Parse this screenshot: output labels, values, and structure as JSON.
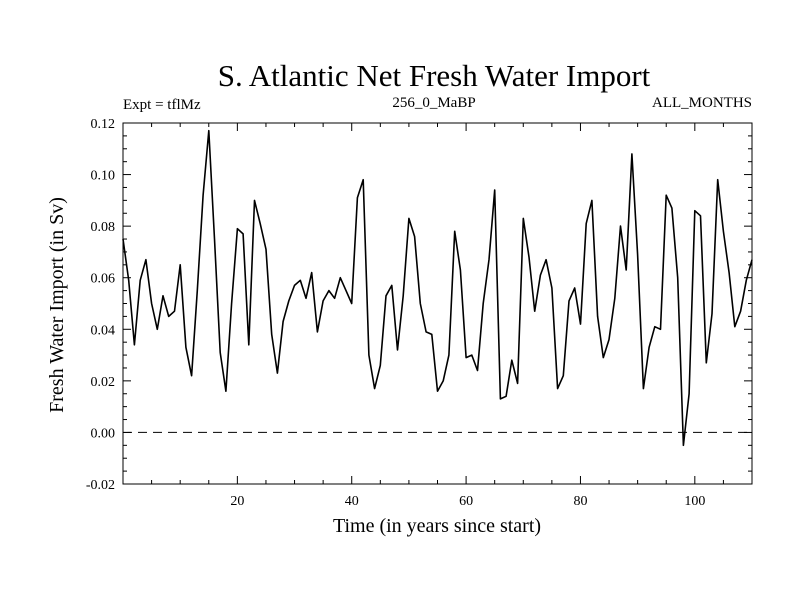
{
  "chart_data": {
    "type": "line",
    "title": "S. Atlantic Net Fresh Water Import",
    "subtitle_left": "Expt = tflMz",
    "subtitle_center": "256_0_MaBP",
    "subtitle_right": "ALL_MONTHS",
    "xlabel": "Time (in years since start)",
    "ylabel": "Fresh Water Import (in Sv)",
    "xlim": [
      0,
      110
    ],
    "ylim": [
      -0.02,
      0.12
    ],
    "x_ticks": [
      20,
      40,
      60,
      80,
      100
    ],
    "x_tick_labels": [
      "20",
      "40",
      "60",
      "80",
      "100"
    ],
    "y_ticks": [
      -0.02,
      0.0,
      0.02,
      0.04,
      0.06,
      0.08,
      0.1,
      0.12
    ],
    "y_tick_labels": [
      "-0.02",
      "0.00",
      "0.02",
      "0.04",
      "0.06",
      "0.08",
      "0.10",
      "0.12"
    ],
    "reference_line": {
      "y": 0.0,
      "style": "dashed"
    },
    "series": [
      {
        "name": "Fresh Water Import",
        "x": [
          0,
          1,
          2,
          3,
          4,
          5,
          6,
          7,
          8,
          9,
          10,
          11,
          12,
          13,
          14,
          15,
          16,
          17,
          18,
          19,
          20,
          21,
          22,
          23,
          24,
          25,
          26,
          27,
          28,
          29,
          30,
          31,
          32,
          33,
          34,
          35,
          36,
          37,
          38,
          39,
          40,
          41,
          42,
          43,
          44,
          45,
          46,
          47,
          48,
          49,
          50,
          51,
          52,
          53,
          54,
          55,
          56,
          57,
          58,
          59,
          60,
          61,
          62,
          63,
          64,
          65,
          66,
          67,
          68,
          69,
          70,
          71,
          72,
          73,
          74,
          75,
          76,
          77,
          78,
          79,
          80,
          81,
          82,
          83,
          84,
          85,
          86,
          87,
          88,
          89,
          90,
          91,
          92,
          93,
          94,
          95,
          96,
          97,
          98,
          99,
          100,
          101,
          102,
          103,
          104,
          105,
          106,
          107,
          108,
          109,
          110
        ],
        "values": [
          0.075,
          0.059,
          0.034,
          0.059,
          0.067,
          0.05,
          0.04,
          0.053,
          0.045,
          0.047,
          0.065,
          0.033,
          0.022,
          0.055,
          0.092,
          0.117,
          0.075,
          0.031,
          0.016,
          0.05,
          0.079,
          0.077,
          0.034,
          0.09,
          0.081,
          0.071,
          0.038,
          0.023,
          0.043,
          0.051,
          0.057,
          0.059,
          0.052,
          0.062,
          0.039,
          0.051,
          0.055,
          0.052,
          0.06,
          0.055,
          0.05,
          0.091,
          0.098,
          0.03,
          0.017,
          0.026,
          0.053,
          0.057,
          0.032,
          0.053,
          0.083,
          0.076,
          0.05,
          0.039,
          0.038,
          0.016,
          0.02,
          0.03,
          0.078,
          0.063,
          0.029,
          0.03,
          0.024,
          0.05,
          0.067,
          0.094,
          0.013,
          0.014,
          0.028,
          0.019,
          0.083,
          0.068,
          0.047,
          0.061,
          0.067,
          0.056,
          0.017,
          0.022,
          0.051,
          0.056,
          0.042,
          0.081,
          0.09,
          0.045,
          0.029,
          0.036,
          0.052,
          0.08,
          0.063,
          0.108,
          0.069,
          0.017,
          0.033,
          0.041,
          0.04,
          0.092,
          0.087,
          0.06,
          -0.005,
          0.015,
          0.086,
          0.084,
          0.027,
          0.046,
          0.098,
          0.078,
          0.062,
          0.041,
          0.047,
          0.059,
          0.067
        ]
      }
    ]
  }
}
